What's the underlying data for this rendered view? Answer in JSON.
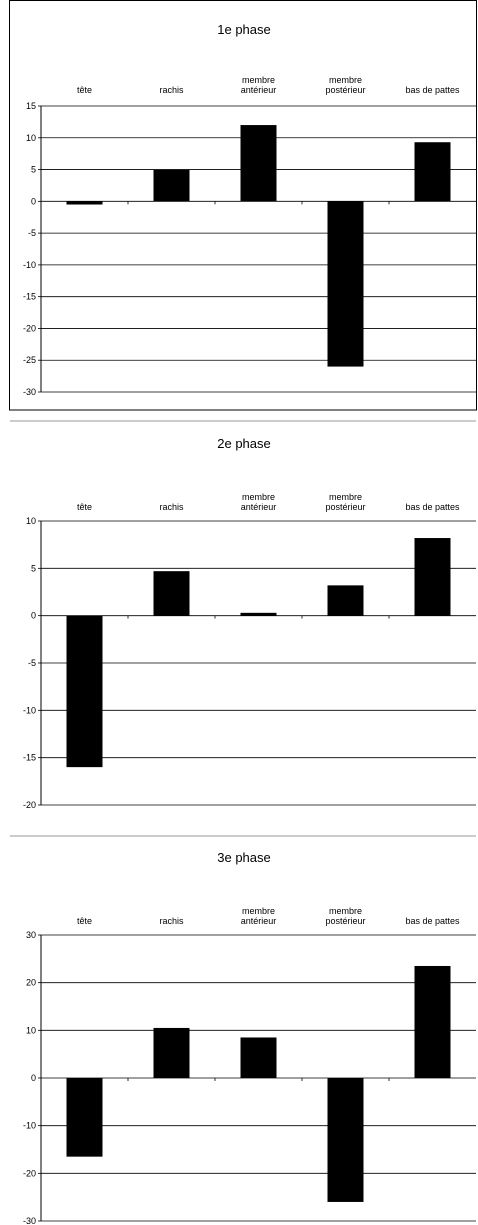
{
  "chart_data": [
    {
      "type": "bar",
      "title": "1e phase",
      "categories": [
        [
          "tête"
        ],
        [
          "rachis"
        ],
        [
          "membre",
          "antérieur"
        ],
        [
          "membre",
          "postérieur"
        ],
        [
          "bas de pattes"
        ]
      ],
      "values": [
        -0.5,
        5,
        12,
        -26,
        9.3
      ],
      "ylim": [
        -30,
        15
      ],
      "yticks": [
        15,
        10,
        5,
        0,
        -5,
        -10,
        -15,
        -20,
        -25,
        -30
      ],
      "grid": true,
      "color": "#000000"
    },
    {
      "type": "bar",
      "title": "2e phase",
      "categories": [
        [
          "tête"
        ],
        [
          "rachis"
        ],
        [
          "membre",
          "antérieur"
        ],
        [
          "membre",
          "postérieur"
        ],
        [
          "bas de pattes"
        ]
      ],
      "values": [
        -16,
        4.7,
        0.3,
        3.2,
        8.2
      ],
      "ylim": [
        -20,
        10
      ],
      "yticks": [
        10,
        5,
        0,
        -5,
        -10,
        -15,
        -20
      ],
      "grid": true,
      "color": "#000000"
    },
    {
      "type": "bar",
      "title": "3e phase",
      "categories": [
        [
          "tête"
        ],
        [
          "rachis"
        ],
        [
          "membre",
          "antérieur"
        ],
        [
          "membre",
          "postérieur"
        ],
        [
          "bas de pattes"
        ]
      ],
      "values": [
        -16.5,
        10.5,
        8.5,
        -26,
        23.5
      ],
      "ylim": [
        -30,
        30
      ],
      "yticks": [
        30,
        20,
        10,
        0,
        -10,
        -20,
        -30
      ],
      "grid": true,
      "color": "#000000"
    }
  ]
}
